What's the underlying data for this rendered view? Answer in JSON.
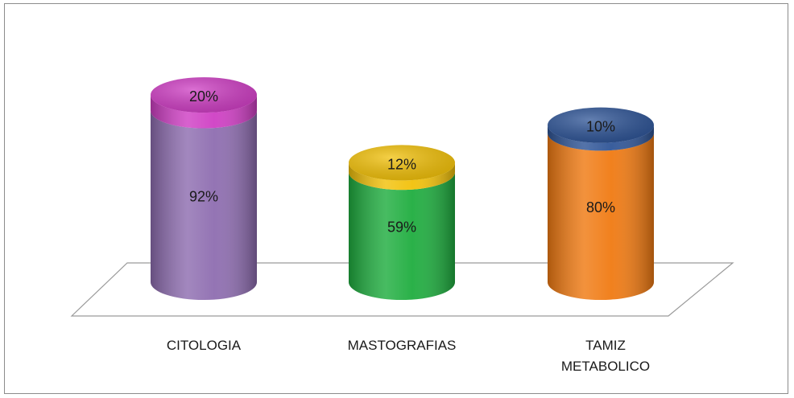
{
  "chart_data": {
    "type": "bar",
    "subtype": "stacked-3d-cylinder",
    "categories": [
      "CITOLOGIA",
      "MASTOGRAFIAS",
      "TAMIZ METABOLICO"
    ],
    "category_label_lines": [
      [
        "CITOLOGIA"
      ],
      [
        "MASTOGRAFIAS"
      ],
      [
        "TAMIZ",
        "METABOLICO"
      ]
    ],
    "series": [
      {
        "values": [
          92,
          59,
          80
        ],
        "labels": [
          "92%",
          "59%",
          "80%"
        ]
      },
      {
        "values": [
          20,
          12,
          10
        ],
        "labels": [
          "20%",
          "12%",
          "10%"
        ]
      }
    ],
    "colors": {
      "lower": [
        "#8e6db0",
        "#1fad3f",
        "#f07a12"
      ],
      "upper": [
        "#cf3fc4",
        "#f2c10a",
        "#2f5597"
      ]
    },
    "legend": "none",
    "grid": false,
    "axes_visible": false,
    "data_labels": true
  }
}
